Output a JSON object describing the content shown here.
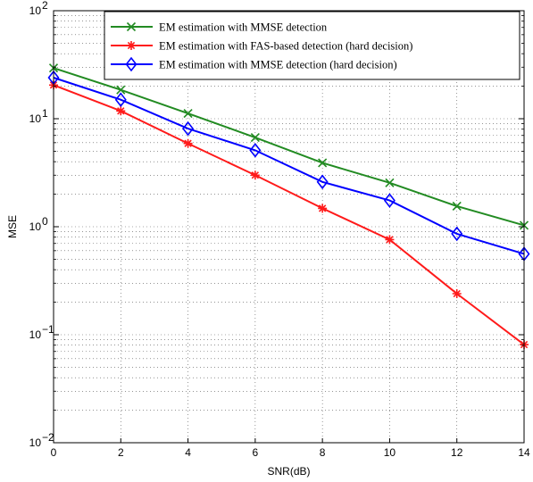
{
  "chart_data": {
    "type": "line",
    "xlabel": "SNR(dB)",
    "ylabel": "MSE",
    "xlim": [
      0,
      14
    ],
    "ylim": [
      0.01,
      100
    ],
    "yscale": "log",
    "grid": true,
    "legend_position": "top-right",
    "x_ticks": [
      "0",
      "2",
      "4",
      "6",
      "8",
      "10",
      "12",
      "14"
    ],
    "y_ticks": [
      {
        "value": 0.01,
        "base": "10",
        "exp": "−2"
      },
      {
        "value": 0.1,
        "base": "10",
        "exp": "−1"
      },
      {
        "value": 1,
        "base": "10",
        "exp": "0"
      },
      {
        "value": 10,
        "base": "10",
        "exp": "1"
      },
      {
        "value": 100,
        "base": "10",
        "exp": "2"
      }
    ],
    "x": [
      0,
      2,
      4,
      6,
      8,
      10,
      12,
      14
    ],
    "series": [
      {
        "name": "EM estimation with MMSE detection",
        "color": "#228B22",
        "marker": "x",
        "values": [
          29.5,
          18.5,
          11.2,
          6.7,
          3.9,
          2.55,
          1.55,
          1.03
        ]
      },
      {
        "name": "EM estimation with FAS-based detection (hard decision)",
        "color": "#FF1A1A",
        "marker": "asterisk",
        "values": [
          20.5,
          11.8,
          5.9,
          3.0,
          1.48,
          0.76,
          0.24,
          0.081
        ]
      },
      {
        "name": "EM estimation with MMSE detection (hard decision)",
        "color": "#0000FF",
        "marker": "diamond",
        "values": [
          24.0,
          15.0,
          8.1,
          5.1,
          2.6,
          1.75,
          0.86,
          0.56
        ]
      }
    ]
  }
}
